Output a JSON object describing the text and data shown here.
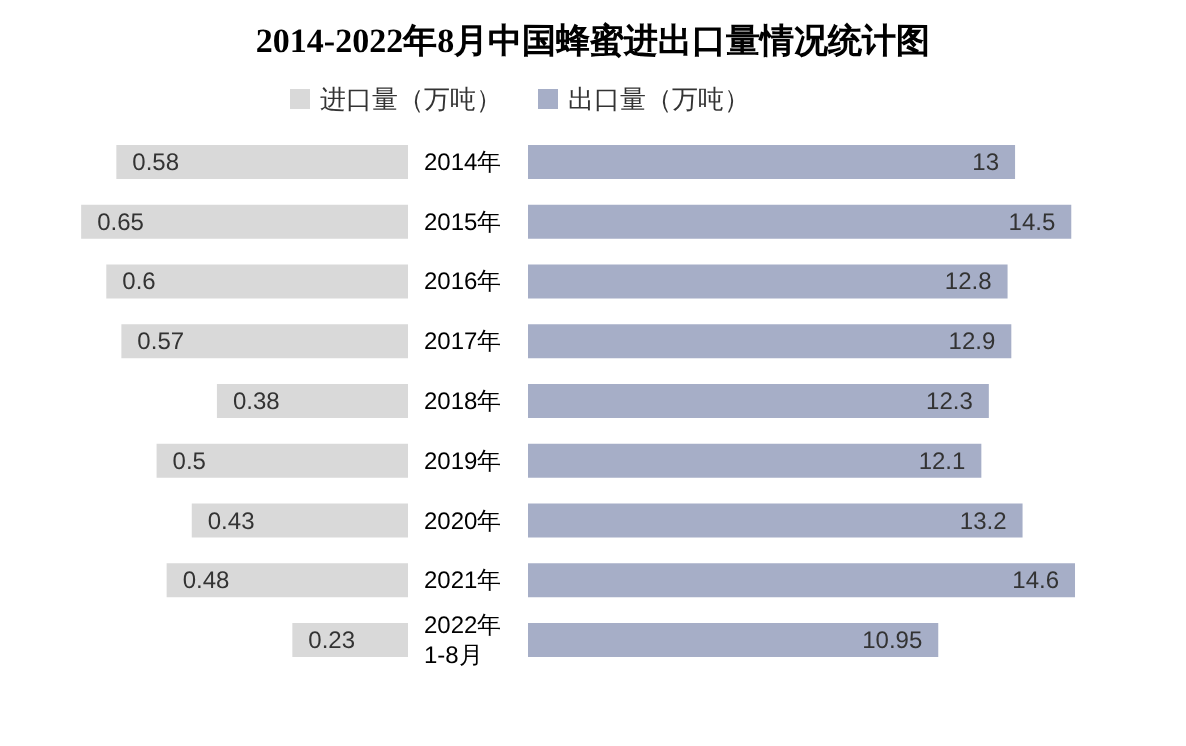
{
  "chart_data": [
    {
      "type": "bar",
      "orientation": "horizontal",
      "title": "2014-2022年8月中国蜂蜜进出口量情况统计图",
      "categories": [
        "2014年",
        "2015年",
        "2016年",
        "2017年",
        "2018年",
        "2019年",
        "2020年",
        "2021年",
        "2022年\n1-8月"
      ],
      "tick_labels": "y",
      "series": [
        {
          "name": "进口量（万吨）",
          "color": "#d9d9d9",
          "values": [
            0.58,
            0.65,
            0.6,
            0.57,
            0.38,
            0.5,
            0.43,
            0.48,
            0.23
          ]
        }
      ],
      "data_labels": true,
      "legend": "top right",
      "grid": false
    },
    {
      "type": "bar",
      "orientation": "horizontal",
      "categories": [
        null,
        null,
        null,
        null,
        null,
        null,
        null,
        null,
        null
      ],
      "tick_labels": false,
      "series": [
        {
          "name": "出口量（万吨）",
          "color": "#a6aec7",
          "values": [
            13,
            14.5,
            12.8,
            12.9,
            12.3,
            12.1,
            13.2,
            14.6,
            10.95
          ]
        }
      ],
      "data_labels": true,
      "legend": "top left",
      "grid": false
    }
  ]
}
